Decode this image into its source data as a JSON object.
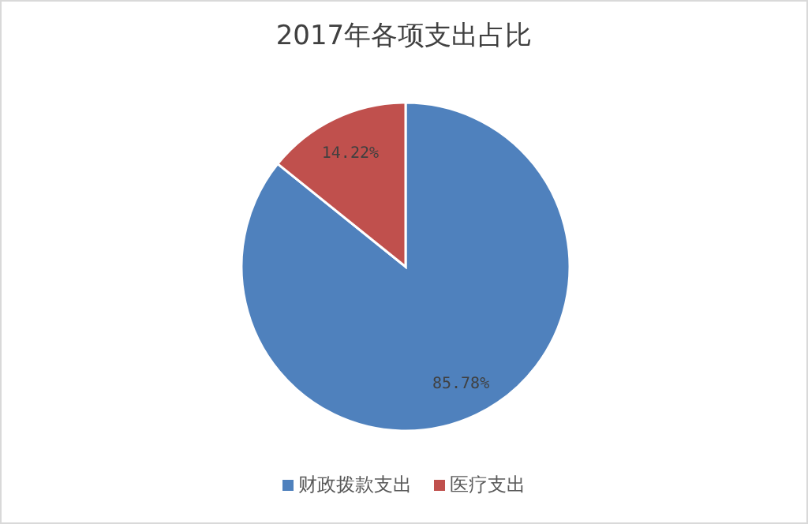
{
  "chart_data": {
    "type": "pie",
    "title": "2017年各项支出占比",
    "categories": [
      "财政拨款支出",
      "医疗支出"
    ],
    "values": [
      85.78,
      14.22
    ],
    "colors": [
      "#4f81bd",
      "#c0504d"
    ],
    "value_labels": [
      "85.78%",
      "14.22%"
    ],
    "legend": "bottom"
  }
}
